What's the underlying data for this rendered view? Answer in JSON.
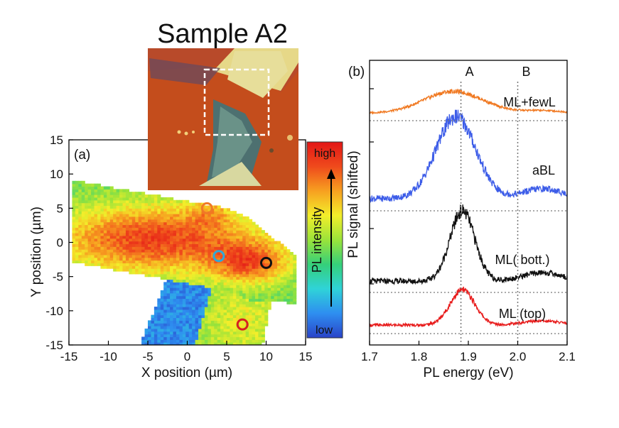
{
  "figure_title": "Sample A2",
  "chart_data": [
    {
      "type": "heatmap",
      "panel_label": "(a)",
      "title": "",
      "xlabel": "X position (µm)",
      "ylabel": "Y position (µm)",
      "xlim": [
        -15,
        15
      ],
      "ylim": [
        -15,
        15
      ],
      "xticks": [
        "-15",
        "-10",
        "-5",
        "0",
        "5",
        "10",
        "15"
      ],
      "yticks": [
        "15",
        "10",
        "5",
        "0",
        "-5",
        "-10",
        "-15"
      ],
      "colorbar": {
        "label": "PL intensity",
        "high_label": "high",
        "low_label": "low",
        "colors": [
          "#2a43c8",
          "#2e8ef0",
          "#2fd3d8",
          "#35d07a",
          "#9ae33a",
          "#f3ee2a",
          "#f7a020",
          "#ef4a1c",
          "#e31616"
        ]
      },
      "markers": [
        {
          "x": 2.5,
          "y": 5.0,
          "color": "#f07828",
          "label": "ML+fewL"
        },
        {
          "x": 4.0,
          "y": -2.0,
          "color": "#30a8d8",
          "label": "aBL"
        },
        {
          "x": 10.0,
          "y": -3.0,
          "color": "#111111",
          "label": "ML (bott.)"
        },
        {
          "x": 7.0,
          "y": -12.0,
          "color": "#d82020",
          "label": "ML (top)"
        }
      ],
      "inset": {
        "description": "optical micrograph",
        "highlighted_region": true
      }
    },
    {
      "type": "line",
      "panel_label": "(b)",
      "title": "",
      "xlabel": "PL energy (eV)",
      "ylabel": "PL signal (shifted)",
      "xlim": [
        1.7,
        2.1
      ],
      "xticks": [
        "1.7",
        "1.8",
        "1.9",
        "2.0",
        "2.1"
      ],
      "vlines": [
        {
          "x": 1.885,
          "label": "A"
        },
        {
          "x": 2.0,
          "label": "B"
        }
      ],
      "series": [
        {
          "name": "ML+fewL",
          "color": "#f07820",
          "offset": 3,
          "peak_ev": 1.87,
          "amplitude": 0.28,
          "width_ev": 0.06
        },
        {
          "name": "aBL",
          "color": "#3c5ce8",
          "offset": 2,
          "peak_ev": 1.875,
          "amplitude": 1.05,
          "width_ev": 0.04
        },
        {
          "name": "ML( bott.)",
          "color": "#111111",
          "offset": 1,
          "peak_ev": 1.888,
          "amplitude": 0.9,
          "width_ev": 0.025
        },
        {
          "name": "ML  (top)",
          "color": "#e81c1c",
          "offset": 0,
          "peak_ev": 1.888,
          "amplitude": 0.45,
          "width_ev": 0.025
        }
      ]
    }
  ]
}
